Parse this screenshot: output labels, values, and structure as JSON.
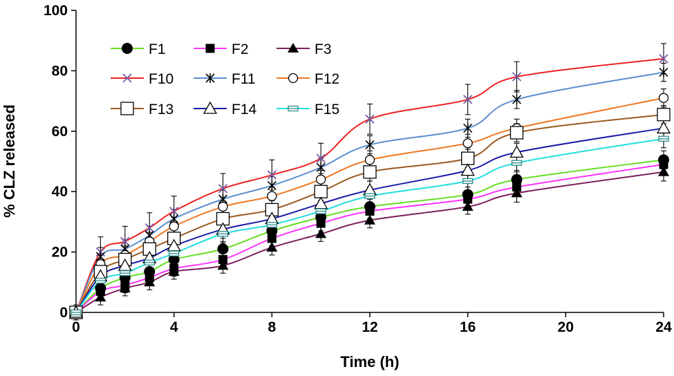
{
  "chart_data": {
    "type": "line",
    "title": "",
    "xlabel": "Time (h)",
    "ylabel": "% CLZ released",
    "x": [
      0,
      1,
      2,
      3,
      4,
      6,
      8,
      10,
      12,
      16,
      18,
      24
    ],
    "xticks": [
      0,
      4,
      8,
      12,
      16,
      20,
      24
    ],
    "yticks": [
      0,
      20,
      40,
      60,
      80,
      100
    ],
    "xlim": [
      0,
      24
    ],
    "ylim": [
      0,
      100
    ],
    "grid": false,
    "legend_position": "top-left",
    "series": [
      {
        "name": "F1",
        "color": "#66dd22",
        "marker": "circle-filled",
        "values": [
          0,
          8,
          11.5,
          13.5,
          17.5,
          21,
          27,
          31.5,
          35,
          39,
          44,
          50.5
        ],
        "errors": [
          1.5,
          2.5,
          2.5,
          2.5,
          2.5,
          2.5,
          2.5,
          2.5,
          2.5,
          2.5,
          3,
          3
        ]
      },
      {
        "name": "F2",
        "color": "#ff33ff",
        "marker": "square-filled",
        "values": [
          0,
          7,
          9,
          11.5,
          14.5,
          17.5,
          24.5,
          29.5,
          33.5,
          37.5,
          41.5,
          49
        ],
        "errors": [
          1.5,
          2.5,
          2.5,
          2.5,
          2.5,
          2.5,
          2.5,
          2.5,
          2.5,
          2.5,
          2.5,
          3
        ]
      },
      {
        "name": "F3",
        "color": "#7a1f5c",
        "marker": "triangle-filled",
        "values": [
          0,
          5,
          8,
          10,
          13.5,
          15.5,
          21.5,
          26,
          30.5,
          35,
          39.5,
          46.5
        ],
        "errors": [
          1.5,
          2.5,
          2.5,
          2.5,
          2.5,
          2.5,
          2.5,
          2.5,
          2.5,
          2.5,
          3,
          3
        ]
      },
      {
        "name": "F10",
        "color": "#ee2222",
        "marker": "x",
        "values": [
          0,
          20,
          23.5,
          28,
          33.5,
          41,
          45.5,
          51,
          64,
          70.5,
          78,
          84
        ],
        "errors": [
          2.5,
          5,
          5,
          5,
          5,
          5,
          5,
          5,
          5,
          5,
          5,
          5
        ]
      },
      {
        "name": "F11",
        "color": "#5b8fd0",
        "marker": "asterisk",
        "values": [
          0,
          18.5,
          21,
          25.5,
          31,
          37.5,
          42,
          48,
          55.5,
          61,
          70.5,
          79.5
        ],
        "errors": [
          2,
          3,
          3,
          3,
          3,
          3,
          3,
          3,
          3,
          3,
          3,
          3
        ]
      },
      {
        "name": "F12",
        "color": "#ee7722",
        "marker": "circle-open",
        "values": [
          0,
          16,
          19,
          23.5,
          28.5,
          35,
          38.5,
          44,
          50.5,
          56,
          61,
          71
        ],
        "errors": [
          2,
          3,
          3,
          3,
          3,
          3,
          3,
          3,
          3,
          3,
          3,
          3
        ]
      },
      {
        "name": "F13",
        "color": "#9a5a22",
        "marker": "square-open",
        "values": [
          0,
          13.5,
          17.5,
          21,
          24.5,
          31,
          34,
          40,
          46.5,
          51,
          59.5,
          65.5
        ],
        "errors": [
          2,
          3,
          3,
          3,
          3,
          3,
          3,
          3,
          3,
          3,
          3,
          3
        ]
      },
      {
        "name": "F14",
        "color": "#1a1aaa",
        "marker": "triangle-open",
        "values": [
          0,
          12,
          15.5,
          18,
          22,
          27.5,
          31,
          36,
          40.5,
          47,
          53,
          61
        ],
        "errors": [
          2,
          3,
          3,
          3,
          3,
          3,
          3,
          3,
          3,
          3,
          3,
          3
        ]
      },
      {
        "name": "F15",
        "color": "#22dddd",
        "marker": "bar-rect",
        "values": [
          0,
          10.5,
          13,
          16.5,
          19.5,
          26,
          29,
          33.5,
          38.5,
          43.5,
          49.5,
          57.5
        ],
        "errors": [
          2,
          3,
          3,
          3,
          3,
          3,
          3,
          3,
          3,
          3,
          3,
          3
        ]
      }
    ]
  }
}
